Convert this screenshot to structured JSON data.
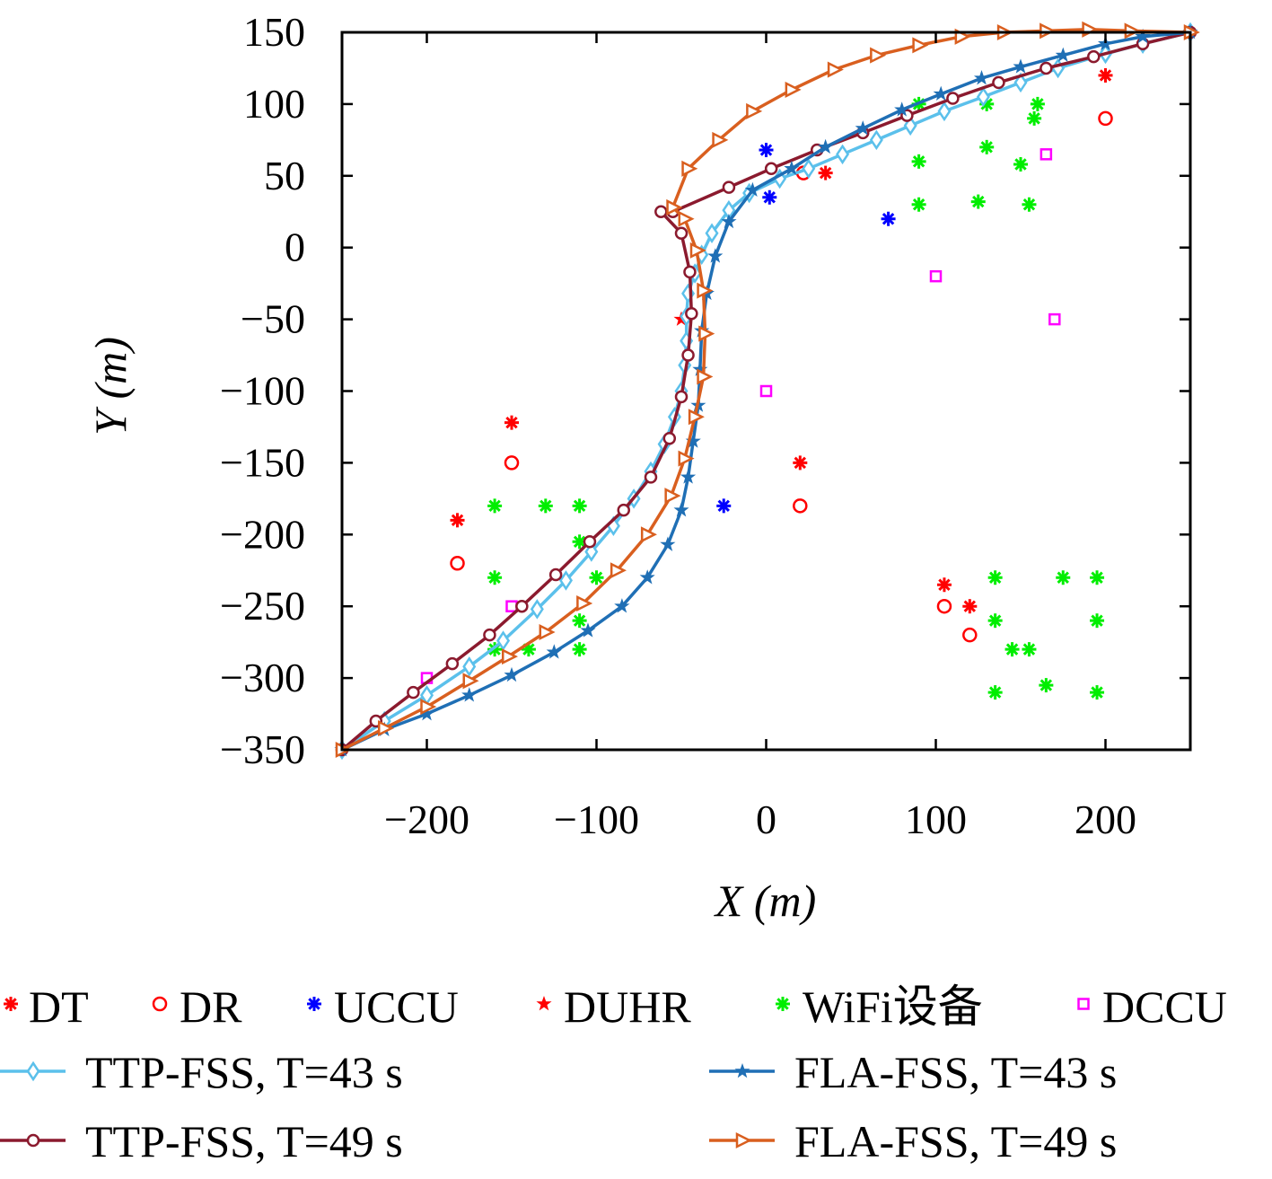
{
  "chart_data": {
    "type": "line",
    "title": "",
    "xlabel": "X (m)",
    "ylabel": "Y (m)",
    "xlim": [
      -250,
      250
    ],
    "ylim": [
      -350,
      150
    ],
    "xticks": [
      -200,
      -100,
      0,
      100,
      200
    ],
    "yticks": [
      150,
      100,
      50,
      0,
      -50,
      -100,
      -150,
      -200,
      -250,
      -300,
      -350
    ],
    "xtick_labels": [
      "−200",
      "−100",
      "0",
      "100",
      "200"
    ],
    "ytick_labels": [
      "150",
      "100",
      "50",
      "0",
      "−50",
      "−100",
      "−150",
      "−200",
      "−250",
      "−300",
      "−350"
    ],
    "grid": false,
    "legend_position": "bottom",
    "point_series": [
      {
        "name": "DT",
        "marker": "asterisk",
        "color": "#ff0000",
        "points": [
          [
            200,
            120
          ],
          [
            35,
            52
          ],
          [
            -150,
            -122
          ],
          [
            20,
            -150
          ],
          [
            -182,
            -190
          ],
          [
            105,
            -235
          ],
          [
            120,
            -250
          ]
        ]
      },
      {
        "name": "DR",
        "marker": "circle",
        "color": "#ff0000",
        "points": [
          [
            200,
            90
          ],
          [
            22,
            52
          ],
          [
            -150,
            -150
          ],
          [
            20,
            -180
          ],
          [
            -182,
            -220
          ],
          [
            105,
            -250
          ],
          [
            120,
            -270
          ]
        ]
      },
      {
        "name": "UCCU",
        "marker": "asterisk",
        "color": "#0000ff",
        "points": [
          [
            0,
            68
          ],
          [
            2,
            35
          ],
          [
            72,
            20
          ],
          [
            -25,
            -180
          ]
        ]
      },
      {
        "name": "DUHR",
        "marker": "star",
        "color": "#ff0000",
        "points": [
          [
            -50,
            -50
          ]
        ]
      },
      {
        "name": "WiFi设备",
        "marker": "asterisk",
        "color": "#00ee00",
        "points": [
          [
            90,
            100
          ],
          [
            130,
            100
          ],
          [
            160,
            100
          ],
          [
            158,
            90
          ],
          [
            130,
            70
          ],
          [
            90,
            60
          ],
          [
            150,
            58
          ],
          [
            90,
            30
          ],
          [
            125,
            32
          ],
          [
            155,
            30
          ],
          [
            -160,
            -180
          ],
          [
            -130,
            -180
          ],
          [
            -110,
            -180
          ],
          [
            -110,
            -205
          ],
          [
            -160,
            -230
          ],
          [
            -100,
            -230
          ],
          [
            -110,
            -260
          ],
          [
            -110,
            -280
          ],
          [
            -160,
            -280
          ],
          [
            -140,
            -280
          ],
          [
            135,
            -230
          ],
          [
            175,
            -230
          ],
          [
            195,
            -230
          ],
          [
            135,
            -260
          ],
          [
            195,
            -260
          ],
          [
            145,
            -280
          ],
          [
            155,
            -280
          ],
          [
            135,
            -310
          ],
          [
            165,
            -305
          ],
          [
            195,
            -310
          ]
        ]
      },
      {
        "name": "DCCU",
        "marker": "square",
        "color": "#ff00ff",
        "points": [
          [
            165,
            65
          ],
          [
            100,
            -20
          ],
          [
            170,
            -50
          ],
          [
            0,
            -100
          ],
          [
            -150,
            -250
          ],
          [
            -200,
            -300
          ]
        ]
      }
    ],
    "series": [
      {
        "name": "TTP-FSS, T=43 s",
        "marker": "diamond",
        "color": "#5bc0eb",
        "points": [
          [
            -250,
            -350
          ],
          [
            -225,
            -330
          ],
          [
            -200,
            -312
          ],
          [
            -175,
            -292
          ],
          [
            -155,
            -274
          ],
          [
            -135,
            -252
          ],
          [
            -118,
            -232
          ],
          [
            -103,
            -212
          ],
          [
            -90,
            -194
          ],
          [
            -78,
            -175
          ],
          [
            -68,
            -156
          ],
          [
            -60,
            -137
          ],
          [
            -54,
            -118
          ],
          [
            -50,
            -100
          ],
          [
            -48,
            -82
          ],
          [
            -47,
            -65
          ],
          [
            -47,
            -48
          ],
          [
            -46,
            -32
          ],
          [
            -42,
            -18
          ],
          [
            -38,
            -5
          ],
          [
            -32,
            10
          ],
          [
            -22,
            26
          ],
          [
            -10,
            38
          ],
          [
            8,
            48
          ],
          [
            25,
            55
          ],
          [
            45,
            65
          ],
          [
            65,
            75
          ],
          [
            85,
            85
          ],
          [
            105,
            95
          ],
          [
            128,
            105
          ],
          [
            150,
            115
          ],
          [
            172,
            125
          ],
          [
            200,
            135
          ],
          [
            222,
            142
          ],
          [
            250,
            150
          ]
        ]
      },
      {
        "name": "TTP-FSS, T=49 s",
        "marker": "circle-open",
        "color": "#8b1a2e",
        "points": [
          [
            -250,
            -350
          ],
          [
            -230,
            -330
          ],
          [
            -208,
            -310
          ],
          [
            -185,
            -290
          ],
          [
            -163,
            -270
          ],
          [
            -144,
            -250
          ],
          [
            -124,
            -228
          ],
          [
            -104,
            -205
          ],
          [
            -84,
            -183
          ],
          [
            -68,
            -160
          ],
          [
            -57,
            -133
          ],
          [
            -50,
            -104
          ],
          [
            -46,
            -75
          ],
          [
            -44,
            -46
          ],
          [
            -45,
            -17
          ],
          [
            -50,
            10
          ],
          [
            -62,
            25
          ],
          [
            -55,
            25
          ],
          [
            -22,
            42
          ],
          [
            3,
            55
          ],
          [
            30,
            68
          ],
          [
            57,
            80
          ],
          [
            83,
            92
          ],
          [
            110,
            104
          ],
          [
            137,
            115
          ],
          [
            165,
            125
          ],
          [
            193,
            133
          ],
          [
            222,
            142
          ],
          [
            250,
            150
          ]
        ]
      },
      {
        "name": "FLA-FSS, T=43 s",
        "marker": "star",
        "color": "#1f6fb5",
        "points": [
          [
            -250,
            -350
          ],
          [
            -225,
            -336
          ],
          [
            -200,
            -325
          ],
          [
            -175,
            -312
          ],
          [
            -150,
            -298
          ],
          [
            -125,
            -282
          ],
          [
            -105,
            -267
          ],
          [
            -85,
            -250
          ],
          [
            -70,
            -230
          ],
          [
            -58,
            -207
          ],
          [
            -50,
            -183
          ],
          [
            -46,
            -160
          ],
          [
            -43,
            -135
          ],
          [
            -40,
            -110
          ],
          [
            -39,
            -85
          ],
          [
            -38,
            -58
          ],
          [
            -35,
            -32
          ],
          [
            -30,
            -6
          ],
          [
            -22,
            18
          ],
          [
            -8,
            40
          ],
          [
            15,
            55
          ],
          [
            35,
            70
          ],
          [
            57,
            83
          ],
          [
            80,
            96
          ],
          [
            103,
            107
          ],
          [
            127,
            118
          ],
          [
            150,
            126
          ],
          [
            175,
            134
          ],
          [
            200,
            142
          ],
          [
            222,
            147
          ],
          [
            250,
            150
          ]
        ]
      },
      {
        "name": "FLA-FSS, T=49 s",
        "marker": "triangle-right",
        "color": "#d95f1f",
        "points": [
          [
            -250,
            -350
          ],
          [
            -225,
            -335
          ],
          [
            -200,
            -320
          ],
          [
            -175,
            -302
          ],
          [
            -152,
            -285
          ],
          [
            -130,
            -268
          ],
          [
            -108,
            -248
          ],
          [
            -88,
            -225
          ],
          [
            -70,
            -200
          ],
          [
            -56,
            -173
          ],
          [
            -48,
            -147
          ],
          [
            -42,
            -118
          ],
          [
            -37,
            -90
          ],
          [
            -36,
            -60
          ],
          [
            -37,
            -30
          ],
          [
            -41,
            -2
          ],
          [
            -48,
            20
          ],
          [
            -55,
            28
          ],
          [
            -46,
            55
          ],
          [
            -28,
            75
          ],
          [
            -8,
            95
          ],
          [
            15,
            110
          ],
          [
            40,
            124
          ],
          [
            65,
            134
          ],
          [
            90,
            141
          ],
          [
            115,
            147
          ],
          [
            140,
            150
          ],
          [
            165,
            151
          ],
          [
            190,
            152
          ],
          [
            215,
            151
          ],
          [
            250,
            150
          ]
        ]
      }
    ]
  }
}
